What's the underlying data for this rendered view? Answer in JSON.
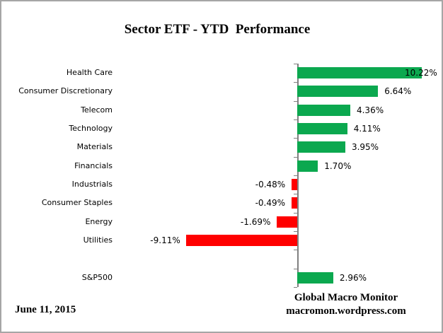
{
  "title": "Sector ETF - YTD  Performance",
  "date_label": "June 11, 2015",
  "attribution": {
    "line1": "Global Macro Monitor",
    "line2": "macromon.wordpress.com"
  },
  "chart_data": {
    "type": "bar",
    "orientation": "horizontal",
    "title": "Sector ETF - YTD  Performance",
    "categories": [
      "Health Care",
      "Consumer Discretionary",
      "Telecom",
      "Technology",
      "Materials",
      "Financials",
      "Industrials",
      "Consumer Staples",
      "Energy",
      "Utilities",
      "S&P500"
    ],
    "values": [
      10.22,
      6.64,
      4.36,
      4.11,
      3.95,
      1.7,
      -0.48,
      -0.49,
      -1.69,
      -9.11,
      2.96
    ],
    "value_labels": [
      "10.22%",
      "6.64%",
      "4.36%",
      "4.11%",
      "3.95%",
      "1.70%",
      "-0.48%",
      "-0.49%",
      "-1.69%",
      "-9.11%",
      "2.96%"
    ],
    "separator_gap_before_index": 10,
    "positive_color": "#0BA84F",
    "negative_color": "#FF0000",
    "axis_color": "#808080",
    "grid": false,
    "legend": false,
    "value_axis_labels_visible": false
  }
}
